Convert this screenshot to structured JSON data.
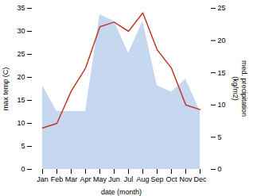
{
  "chart_data": {
    "type": "line",
    "xlabel": "date (month)",
    "ylabel": "max temp (C)",
    "y2label": "med. precipitation\n(kg/m2)",
    "categories": [
      "Jan",
      "Feb",
      "Mar",
      "Apr",
      "May",
      "Jun",
      "Jul",
      "Aug",
      "Sep",
      "Oct",
      "Nov",
      "Dec"
    ],
    "series": [
      {
        "type": "area",
        "color": "#c5d8f0",
        "axis": "y2",
        "values": [
          13,
          9,
          9,
          9,
          24,
          23,
          18,
          23,
          13,
          12,
          14,
          9
        ]
      },
      {
        "type": "line",
        "color": "#c0392b",
        "values": [
          9,
          10,
          17,
          22,
          31,
          32,
          30,
          34,
          26,
          22,
          14,
          13
        ]
      }
    ],
    "ylim": [
      0,
      35
    ],
    "yticks": [
      0,
      5,
      10,
      15,
      20,
      25,
      30,
      35
    ],
    "y2lim": [
      0,
      25
    ],
    "y2ticks": [
      0,
      5,
      10,
      15,
      20,
      25
    ]
  }
}
